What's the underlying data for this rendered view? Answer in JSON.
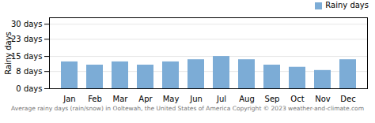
{
  "chart_data": {
    "type": "bar",
    "categories": [
      "Jan",
      "Feb",
      "Mar",
      "Apr",
      "May",
      "Jun",
      "Jul",
      "Aug",
      "Sep",
      "Oct",
      "Nov",
      "Dec"
    ],
    "series": [
      {
        "name": "Rainy days",
        "color": "#7cacd6",
        "values": [
          12.5,
          11,
          12.5,
          11,
          12.5,
          13.5,
          15,
          13.5,
          11,
          10,
          8.5,
          13.5
        ]
      }
    ],
    "ylabel": "Rainy days",
    "ylim": [
      0,
      33
    ],
    "yticks": [
      {
        "value": 0,
        "label": "0 days"
      },
      {
        "value": 8,
        "label": "8 days"
      },
      {
        "value": 15,
        "label": "15 days"
      },
      {
        "value": 23,
        "label": "23 days"
      },
      {
        "value": 30,
        "label": "30 days"
      }
    ],
    "grid": true,
    "legend": "upper right",
    "caption": "Average rainy days (rain/snow) in Ooltewah, the United States of America   Copyright © 2023  weather-and-climate.com"
  }
}
